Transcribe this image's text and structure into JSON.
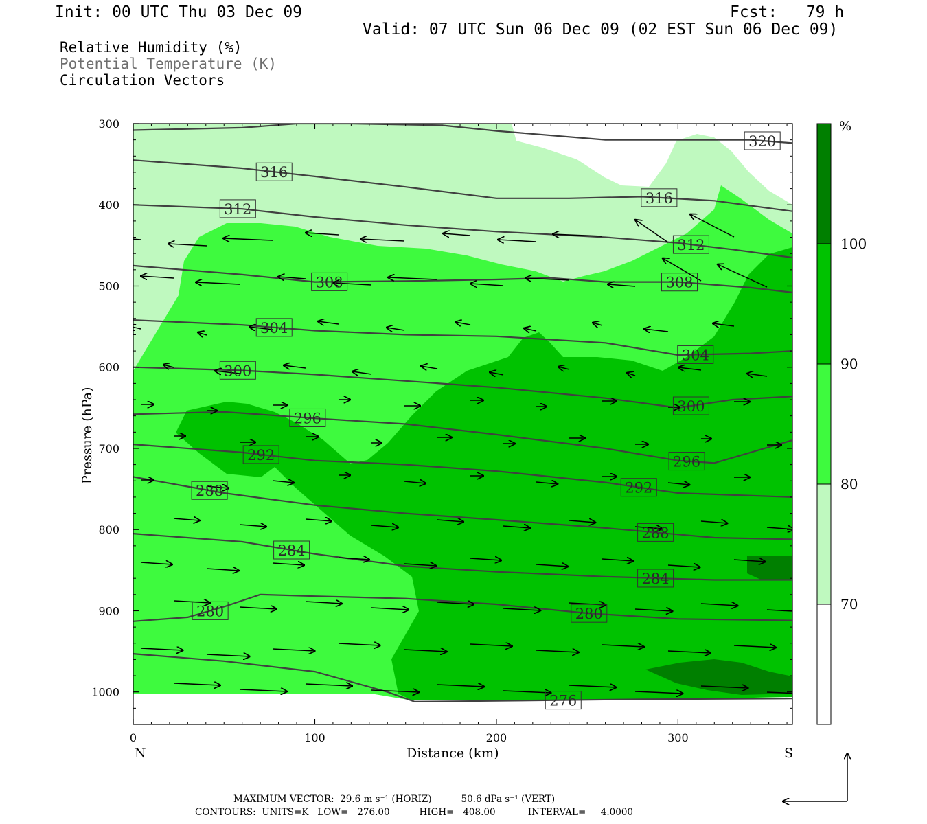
{
  "header": {
    "init": "Init: 00 UTC Thu 03 Dec 09",
    "fcst": "Fcst:   79 h",
    "valid": "Valid: 07 UTC Sun 06 Dec 09 (02 EST Sun 06 Dec 09)"
  },
  "legend": {
    "rh": "Relative Humidity (%)",
    "theta": "Potential Temperature (K)",
    "vectors": "Circulation Vectors"
  },
  "footer": {
    "max_vector": "MAXIMUM VECTOR:  29.6 m s⁻¹ (HORIZ)          50.6 dPa s⁻¹ (VERT)",
    "contours": "CONTOURS:  UNITS=K   LOW=   276.00          HIGH=   408.00           INTERVAL=     4.0000"
  },
  "colors": {
    "rh_70_80": "#bff9bf",
    "rh_80_90": "#3efa3e",
    "rh_90_100": "#00c200",
    "rh_100": "#007f00",
    "theta_line": "#404040"
  },
  "chart_data": {
    "type": "cross-section contour",
    "xlabel": "Distance (km)",
    "ylabel": "Pressure (hPa)",
    "xlim": [
      0,
      363
    ],
    "ylim": [
      1040,
      300
    ],
    "x_ticks": [
      0,
      100,
      200,
      300
    ],
    "y_ticks": [
      300,
      400,
      500,
      600,
      700,
      800,
      900,
      1000
    ],
    "x_end_labels": {
      "left": "N",
      "right": "S"
    },
    "colorbar": {
      "unit_label": "%",
      "levels": [
        70,
        80,
        90,
        100
      ],
      "colors": [
        "#ffffff",
        "#bff9bf",
        "#3efa3e",
        "#00c200",
        "#007f00"
      ]
    },
    "theta_contours": [
      {
        "value": 276,
        "points": [
          [
            0,
            953
          ],
          [
            50,
            962
          ],
          [
            100,
            975
          ],
          [
            140,
            1000
          ],
          [
            155,
            1012
          ],
          [
            200,
            1011
          ],
          [
            280,
            1009
          ],
          [
            363,
            1008
          ]
        ]
      },
      {
        "value": 280,
        "points": [
          [
            0,
            913
          ],
          [
            30,
            908
          ],
          [
            50,
            895
          ],
          [
            70,
            880
          ],
          [
            100,
            882
          ],
          [
            150,
            885
          ],
          [
            200,
            892
          ],
          [
            250,
            903
          ],
          [
            300,
            910
          ],
          [
            363,
            912
          ]
        ]
      },
      {
        "value": 284,
        "points": [
          [
            0,
            805
          ],
          [
            60,
            815
          ],
          [
            100,
            830
          ],
          [
            150,
            845
          ],
          [
            200,
            852
          ],
          [
            260,
            858
          ],
          [
            320,
            862
          ],
          [
            363,
            862
          ]
        ]
      },
      {
        "value": 288,
        "points": [
          [
            0,
            735
          ],
          [
            50,
            755
          ],
          [
            100,
            770
          ],
          [
            150,
            780
          ],
          [
            200,
            788
          ],
          [
            260,
            798
          ],
          [
            320,
            810
          ],
          [
            363,
            812
          ]
        ]
      },
      {
        "value": 292,
        "points": [
          [
            0,
            695
          ],
          [
            60,
            705
          ],
          [
            100,
            715
          ],
          [
            150,
            720
          ],
          [
            200,
            728
          ],
          [
            260,
            742
          ],
          [
            300,
            755
          ],
          [
            363,
            760
          ]
        ]
      },
      {
        "value": 296,
        "points": [
          [
            0,
            658
          ],
          [
            50,
            655
          ],
          [
            100,
            663
          ],
          [
            150,
            670
          ],
          [
            200,
            683
          ],
          [
            260,
            700
          ],
          [
            300,
            715
          ],
          [
            320,
            718
          ],
          [
            363,
            690
          ]
        ]
      },
      {
        "value": 300,
        "points": [
          [
            0,
            600
          ],
          [
            60,
            604
          ],
          [
            100,
            609
          ],
          [
            150,
            617
          ],
          [
            200,
            625
          ],
          [
            260,
            638
          ],
          [
            300,
            650
          ],
          [
            330,
            640
          ],
          [
            363,
            636
          ]
        ]
      },
      {
        "value": 304,
        "points": [
          [
            0,
            542
          ],
          [
            60,
            548
          ],
          [
            100,
            555
          ],
          [
            150,
            560
          ],
          [
            200,
            562
          ],
          [
            260,
            570
          ],
          [
            300,
            585
          ],
          [
            340,
            583
          ],
          [
            363,
            580
          ]
        ]
      },
      {
        "value": 308,
        "points": [
          [
            0,
            475
          ],
          [
            60,
            486
          ],
          [
            100,
            495
          ],
          [
            150,
            494
          ],
          [
            200,
            492
          ],
          [
            230,
            490
          ],
          [
            260,
            495
          ],
          [
            300,
            495
          ],
          [
            340,
            502
          ],
          [
            363,
            508
          ]
        ]
      },
      {
        "value": 312,
        "points": [
          [
            0,
            400
          ],
          [
            60,
            405
          ],
          [
            100,
            415
          ],
          [
            150,
            425
          ],
          [
            200,
            433
          ],
          [
            260,
            440
          ],
          [
            300,
            447
          ],
          [
            330,
            455
          ],
          [
            363,
            465
          ]
        ]
      },
      {
        "value": 316,
        "points": [
          [
            0,
            345
          ],
          [
            60,
            355
          ],
          [
            100,
            365
          ],
          [
            150,
            378
          ],
          [
            200,
            392
          ],
          [
            240,
            392
          ],
          [
            280,
            390
          ],
          [
            320,
            395
          ],
          [
            363,
            408
          ]
        ]
      },
      {
        "value": 320,
        "points": [
          [
            0,
            308
          ],
          [
            60,
            305
          ],
          [
            90,
            300
          ],
          [
            120,
            300
          ],
          [
            170,
            302
          ],
          [
            200,
            309
          ],
          [
            260,
            320
          ],
          [
            300,
            320
          ],
          [
            340,
            320
          ],
          [
            363,
            324
          ]
        ]
      }
    ]
  }
}
